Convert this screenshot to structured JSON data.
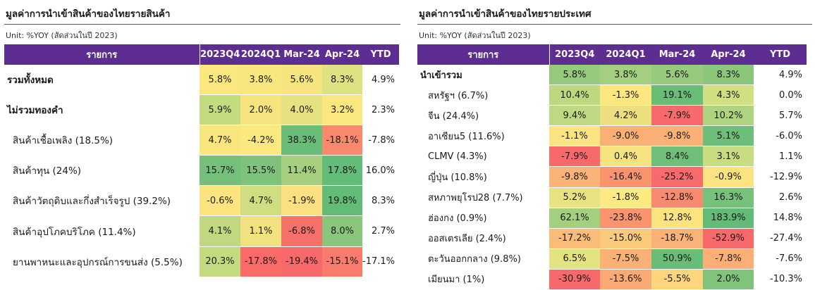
{
  "left": {
    "title": "มูลค่าการนำเข้าสินค้าของไทยรายสินค้า",
    "unit": "Unit: %YOY (สัดส่วนในปี 2023)",
    "headers": [
      "รายการ",
      "2023Q4",
      "2024Q1",
      "Mar-24",
      "Apr-24",
      "YTD"
    ],
    "rows": [
      {
        "name": "รวมทั้งหมด",
        "bold": true,
        "values": [
          "5.8%",
          "3.8%",
          "5.6%",
          "8.3%"
        ],
        "colors": [
          "#fbe67f",
          "#f8e67e",
          "#f6e57f",
          "#dfe282"
        ],
        "ytd": "4.9%"
      },
      {
        "name": "ไม่รวมทองคำ",
        "bold": true,
        "values": [
          "5.9%",
          "2.0%",
          "4.0%",
          "3.2%"
        ],
        "colors": [
          "#c4dc80",
          "#f6e57f",
          "#e6e282",
          "#fbe77f"
        ],
        "ytd": "2.3%"
      },
      {
        "name": "สินค้าเชื้อเพลิง (18.5%)",
        "bold": false,
        "values": [
          "4.7%",
          "-4.2%",
          "38.3%",
          "-18.1%"
        ],
        "colors": [
          "#fbe67e",
          "#fbe97f",
          "#6abd78",
          "#f8896d"
        ],
        "ytd": "-7.8%"
      },
      {
        "name": "สินค้าทุน (24%)",
        "bold": false,
        "values": [
          "15.7%",
          "15.5%",
          "11.4%",
          "17.8%"
        ],
        "colors": [
          "#74c07a",
          "#7ec27b",
          "#a6d07f",
          "#63bc78"
        ],
        "ytd": "16.0%"
      },
      {
        "name": "สินค้าวัตถุดิบและกึ่งสำเร็จรูป (39.2%)",
        "bold": false,
        "values": [
          "-0.6%",
          "4.7%",
          "-1.9%",
          "19.8%"
        ],
        "colors": [
          "#fde47f",
          "#cede81",
          "#fcdf7e",
          "#62bb77"
        ],
        "ytd": "8.3%"
      },
      {
        "name": "สินค้าอุปโภคบริโภค (11.4%)",
        "bold": false,
        "values": [
          "4.1%",
          "1.1%",
          "-6.8%",
          "8.0%"
        ],
        "colors": [
          "#c2d880",
          "#f2e17f",
          "#f6706a",
          "#89c57b"
        ],
        "ytd": "2.7%"
      },
      {
        "name": "ยานพาหนะและอุปกรณ์การขนส่ง (5.5%)",
        "bold": false,
        "values": [
          "20.3%",
          "-17.8%",
          "-19.4%",
          "-15.1%"
        ],
        "colors": [
          "#c3da7f",
          "#f96a69",
          "#f8696b",
          "#f97b6c"
        ],
        "ytd": "-17.1%"
      }
    ]
  },
  "right": {
    "title": "มูลค่าการนำเข้าสินค้าของไทยรายประเทศ",
    "unit": "Unit: %YOY (สัดส่วนในปี 2023)",
    "headers": [
      "รายการ",
      "2023Q4",
      "2024Q1",
      "Mar-24",
      "Apr-24",
      "YTD"
    ],
    "rows": [
      {
        "name": "นำเข้ารวม",
        "bold": true,
        "values": [
          "5.8%",
          "3.8%",
          "5.6%",
          "8.3%"
        ],
        "colors": [
          "#95c97c",
          "#a4cf7e",
          "#97ca7c",
          "#8bc67b"
        ],
        "ytd": "4.9%"
      },
      {
        "name": "สหรัฐฯ (6.7%)",
        "bold": false,
        "values": [
          "10.4%",
          "-1.3%",
          "19.1%",
          "4.3%"
        ],
        "colors": [
          "#bcd981",
          "#fbe67f",
          "#69bd77",
          "#cfdf81"
        ],
        "ytd": "0.0%"
      },
      {
        "name": "จีน (24.4%)",
        "bold": false,
        "values": [
          "9.4%",
          "4.2%",
          "-7.9%",
          "10.2%"
        ],
        "colors": [
          "#bed981",
          "#ecdf80",
          "#f8696b",
          "#aed480"
        ],
        "ytd": "5.7%"
      },
      {
        "name": "อาเซียน5 (11.6%)",
        "bold": false,
        "values": [
          "-1.1%",
          "-9.0%",
          "-9.8%",
          "5.1%"
        ],
        "colors": [
          "#fce480",
          "#fab075",
          "#fbb076",
          "#6cbe78"
        ],
        "ytd": "-6.0%"
      },
      {
        "name": "CLMV (4.3%)",
        "bold": false,
        "values": [
          "-7.9%",
          "0.4%",
          "8.4%",
          "3.1%"
        ],
        "colors": [
          "#f8696b",
          "#f5e37f",
          "#6fbf79",
          "#c8dc81"
        ],
        "ytd": "1.1%"
      },
      {
        "name": "ญี่ปุ่น (10.8%)",
        "bold": false,
        "values": [
          "-9.8%",
          "-16.4%",
          "-25.2%",
          "-0.9%"
        ],
        "colors": [
          "#fbb477",
          "#f9946f",
          "#f86b6c",
          "#fbe47f"
        ],
        "ytd": "-12.9%"
      },
      {
        "name": "สหภาพยุโรป28 (7.7%)",
        "bold": false,
        "values": [
          "5.2%",
          "-1.8%",
          "-12.8%",
          "16.3%"
        ],
        "colors": [
          "#e8e382",
          "#fdea82",
          "#f88a6f",
          "#77c17a"
        ],
        "ytd": "2.6%"
      },
      {
        "name": "ฮ่องกง (0.9%)",
        "bold": false,
        "values": [
          "62.1%",
          "-23.8%",
          "12.8%",
          "183.9%"
        ],
        "colors": [
          "#a3d07f",
          "#f9946f",
          "#fbe47f",
          "#62bb77"
        ],
        "ytd": "14.8%"
      },
      {
        "name": "ออสเตรเลีย (2.4%)",
        "bold": false,
        "values": [
          "-17.2%",
          "-15.0%",
          "-18.7%",
          "-52.9%"
        ],
        "colors": [
          "#fbbc78",
          "#fbca7a",
          "#fbb277",
          "#f8696b"
        ],
        "ytd": "-27.4%"
      },
      {
        "name": "ตะวันออกกลาง (9.8%)",
        "bold": false,
        "values": [
          "6.5%",
          "-7.5%",
          "50.9%",
          "-7.8%"
        ],
        "colors": [
          "#e4e382",
          "#fbb176",
          "#6abd77",
          "#fbaf76"
        ],
        "ytd": "-7.6%"
      },
      {
        "name": "เมียนมา (1%)",
        "bold": false,
        "values": [
          "-30.9%",
          "-13.6%",
          "-5.5%",
          "2.0%"
        ],
        "colors": [
          "#f8696b",
          "#faab75",
          "#fdd57c",
          "#80c37b"
        ],
        "ytd": "-10.3%"
      }
    ]
  }
}
